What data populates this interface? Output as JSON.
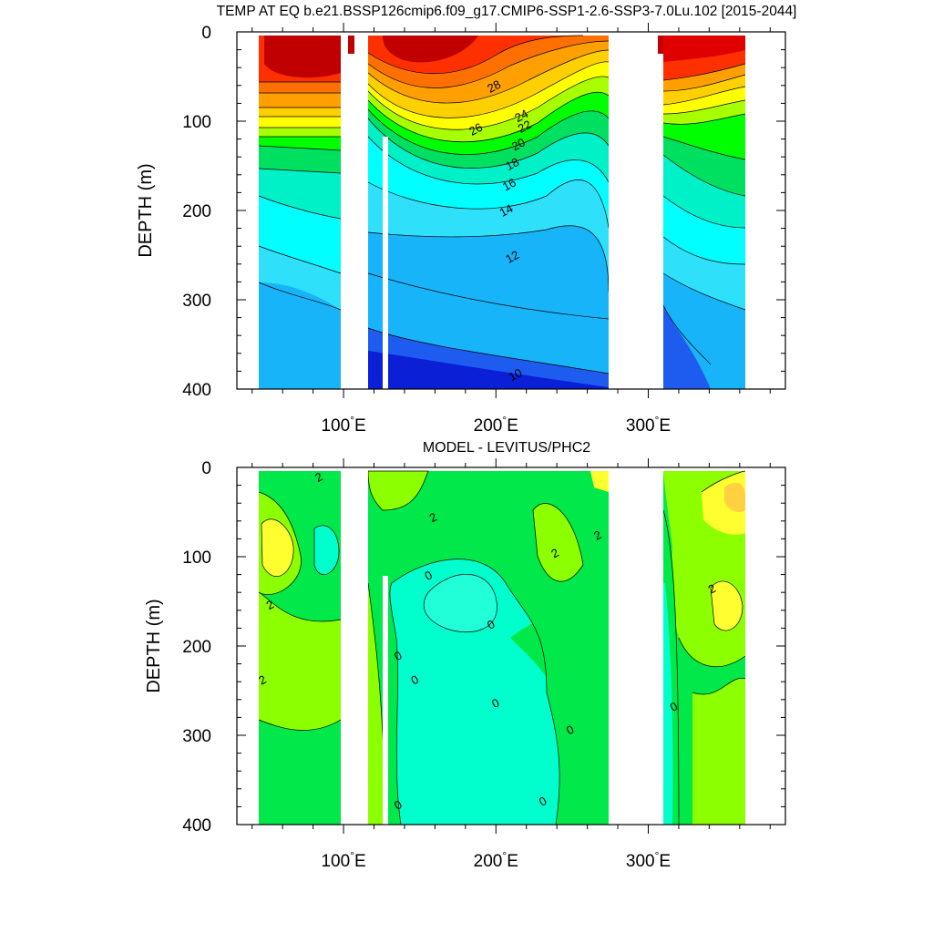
{
  "chart_data": [
    {
      "type": "heatmap",
      "panel": "top",
      "title": "TEMP AT EQ b.e21.BSSP126cmip6.f09_g17.CMIP6-SSP1-2.6-SSP3-7.0Lu.102 [2015-2044]",
      "ylabel": "DEPTH (m)",
      "xlim": [
        30,
        390
      ],
      "ylim": [
        400,
        0
      ],
      "y_ticks": [
        "0",
        "100",
        "200",
        "300",
        "400"
      ],
      "x_ticks": [
        {
          "value": 100,
          "label": "100"
        },
        {
          "value": 200,
          "label": "200"
        },
        {
          "value": 300,
          "label": "300"
        }
      ],
      "x_tick_suffix": "°E",
      "land_gaps_lon": [
        [
          98,
          118
        ],
        [
          280,
          315
        ]
      ],
      "data_extent_lon": [
        45,
        370
      ],
      "contour_labels": [
        {
          "text": "28",
          "lon": 200,
          "depth": 65
        },
        {
          "text": "26",
          "lon": 188,
          "depth": 113
        },
        {
          "text": "24",
          "lon": 218,
          "depth": 98
        },
        {
          "text": "22",
          "lon": 220,
          "depth": 110
        },
        {
          "text": "20",
          "lon": 216,
          "depth": 130
        },
        {
          "text": "18",
          "lon": 212,
          "depth": 152
        },
        {
          "text": "16",
          "lon": 210,
          "depth": 175
        },
        {
          "text": "14",
          "lon": 208,
          "depth": 204
        },
        {
          "text": "12",
          "lon": 212,
          "depth": 256
        },
        {
          "text": "10",
          "lon": 214,
          "depth": 388
        }
      ],
      "colors": [
        "#0b1fd6",
        "#1e5cf0",
        "#1a8cf5",
        "#18b4fa",
        "#2fe0fa",
        "#00ffff",
        "#00f0c8",
        "#00e060",
        "#00ff00",
        "#a8ff00",
        "#ffff00",
        "#ffd000",
        "#ffa000",
        "#ff7000",
        "#ff3000",
        "#e00000",
        "#c00000"
      ]
    },
    {
      "type": "heatmap",
      "panel": "bottom",
      "title": "MODEL - LEVITUS/PHC2",
      "ylabel": "DEPTH (m)",
      "xlim": [
        30,
        390
      ],
      "ylim": [
        400,
        0
      ],
      "y_ticks": [
        "0",
        "100",
        "200",
        "300",
        "400"
      ],
      "x_ticks": [
        {
          "value": 100,
          "label": "100"
        },
        {
          "value": 200,
          "label": "200"
        },
        {
          "value": 300,
          "label": "300"
        }
      ],
      "x_tick_suffix": "°E",
      "contour_labels": [
        {
          "text": "2",
          "lon": 85,
          "depth": 15
        },
        {
          "text": "2",
          "lon": 53,
          "depth": 158
        },
        {
          "text": "2",
          "lon": 48,
          "depth": 242
        },
        {
          "text": "2",
          "lon": 160,
          "depth": 60
        },
        {
          "text": "2",
          "lon": 240,
          "depth": 100
        },
        {
          "text": "2",
          "lon": 268,
          "depth": 80
        },
        {
          "text": "2",
          "lon": 343,
          "depth": 140
        },
        {
          "text": "0",
          "lon": 157,
          "depth": 125
        },
        {
          "text": "0",
          "lon": 198,
          "depth": 180
        },
        {
          "text": "0",
          "lon": 137,
          "depth": 215
        },
        {
          "text": "0",
          "lon": 148,
          "depth": 242
        },
        {
          "text": "0",
          "lon": 201,
          "depth": 268
        },
        {
          "text": "0",
          "lon": 250,
          "depth": 298
        },
        {
          "text": "0",
          "lon": 318,
          "depth": 272
        },
        {
          "text": "0",
          "lon": 232,
          "depth": 378
        },
        {
          "text": "0",
          "lon": 137,
          "depth": 382
        }
      ],
      "colors": [
        "#00ffcc",
        "#00e84a",
        "#8cff00",
        "#ffff30",
        "#ffd040"
      ]
    }
  ]
}
